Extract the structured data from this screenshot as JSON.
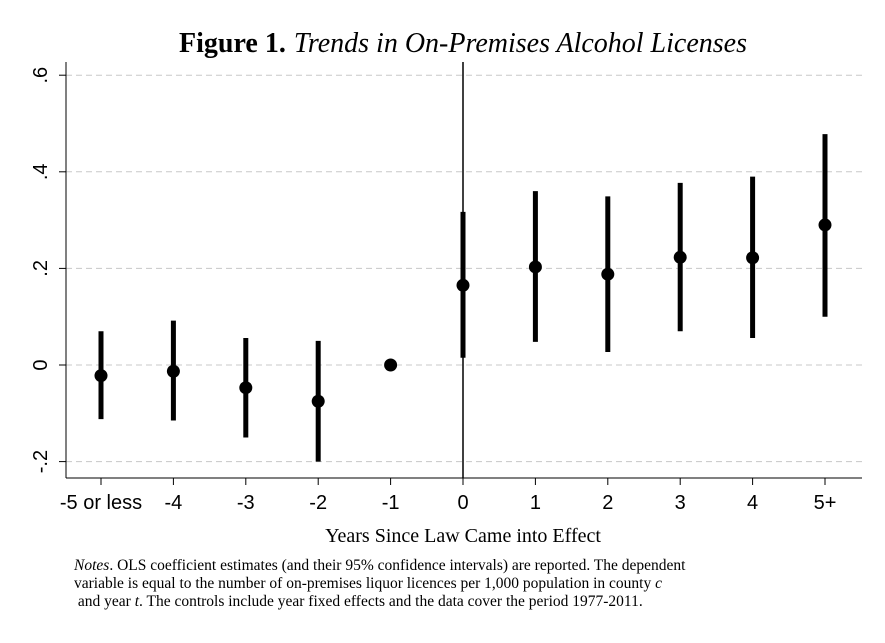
{
  "chart_data": {
    "type": "scatter",
    "title_bold": "Figure 1.",
    "title_italic": "Trends in On-Premises Alcohol Licenses",
    "xlabel": "Years Since Law Came into Effect",
    "ylabel": "",
    "categories": [
      "-5 or less",
      "-4",
      "-3",
      "-2",
      "-1",
      "0",
      "1",
      "2",
      "3",
      "4",
      "5+"
    ],
    "series": [
      {
        "name": "OLS coefficient estimate (95% CI)",
        "values": [
          -0.022,
          -0.013,
          -0.047,
          -0.075,
          0.0,
          0.165,
          0.203,
          0.188,
          0.223,
          0.222,
          0.29
        ],
        "ci_low": [
          -0.112,
          -0.115,
          -0.15,
          -0.2,
          0.0,
          0.015,
          0.048,
          0.027,
          0.07,
          0.056,
          0.1
        ],
        "ci_high": [
          0.07,
          0.092,
          0.056,
          0.05,
          0.0,
          0.317,
          0.36,
          0.349,
          0.377,
          0.39,
          0.478
        ]
      }
    ],
    "yticks": [
      -0.2,
      0,
      0.2,
      0.4,
      0.6
    ],
    "ytick_labels": [
      "-.2",
      "0",
      ".2",
      ".4",
      ".6"
    ],
    "ylim": [
      -0.2,
      0.6
    ],
    "grid": "horizontal dashed",
    "reference_line_x": "0"
  },
  "notes": {
    "lead": "Notes",
    "line1_rest": ". OLS coefficient estimates (and their 95% confidence intervals) are reported. The dependent",
    "line2_pre": "variable is equal to the number of on-premises liquor licences per 1,000 population in county",
    "line2_var": "c",
    "line3_pre": "and year",
    "line3_var": "t",
    "line3_post": ". The controls include year fixed effects and the data cover the period 1977-2011."
  }
}
